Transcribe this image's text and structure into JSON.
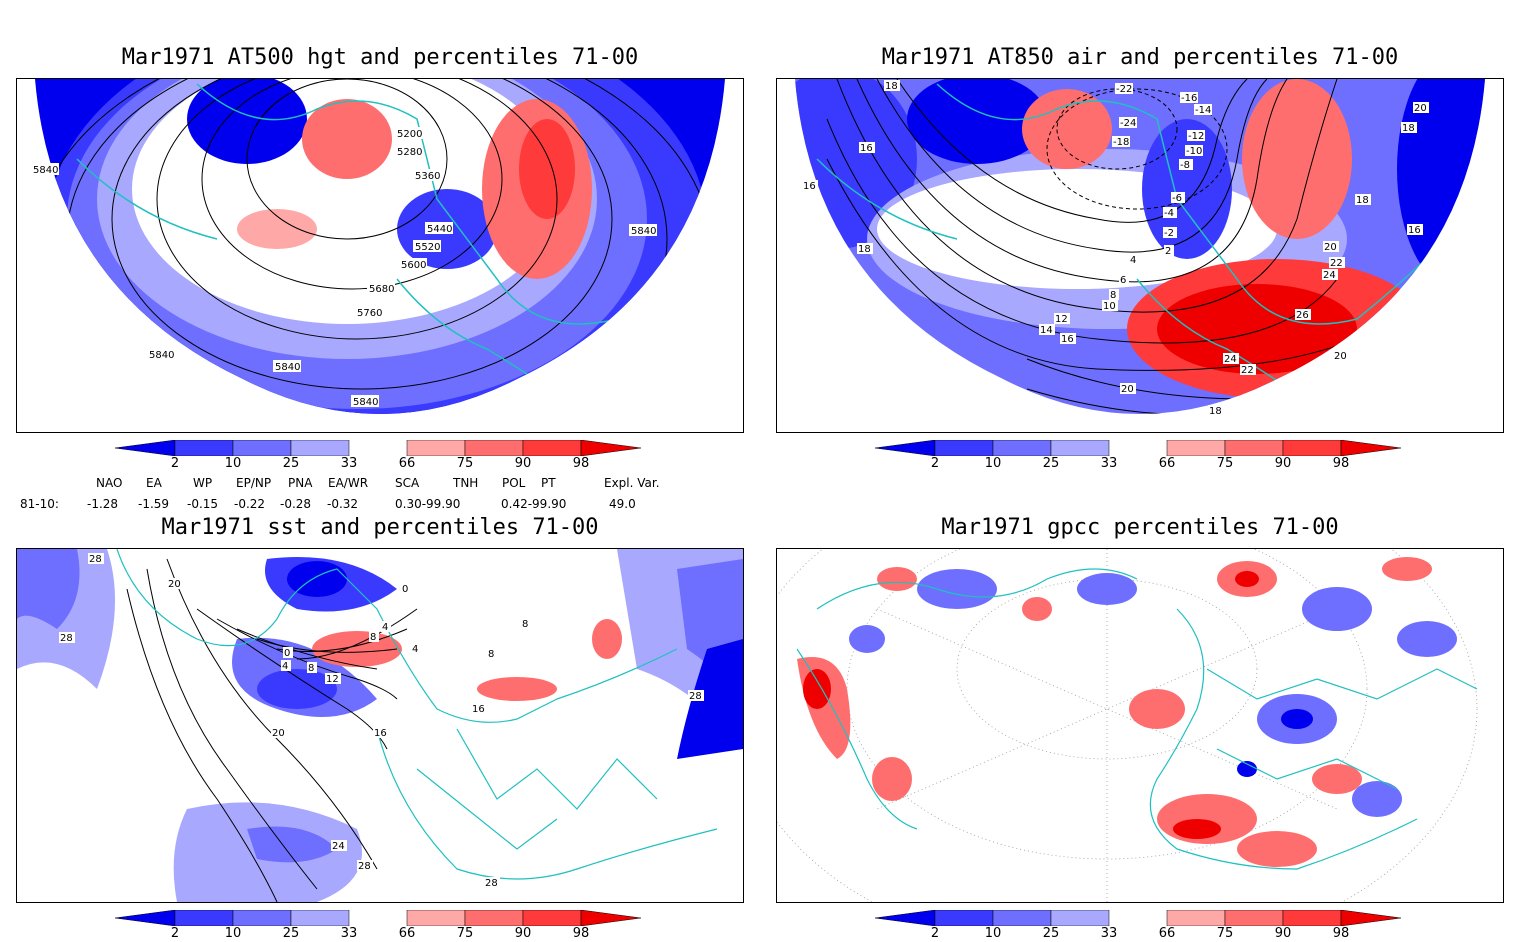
{
  "panels": [
    {
      "title": "Mar1971 AT500 hgt and percentiles 71-00",
      "contour_labels": [
        "5200",
        "5280",
        "5360",
        "5440",
        "5520",
        "5600",
        "5680",
        "5760",
        "5840",
        "5840",
        "5840",
        "5840",
        "5840"
      ]
    },
    {
      "title": "Mar1971 AT850 air and percentiles 71-00",
      "contour_labels": [
        "-22",
        "-16",
        "-14",
        "-24",
        "-18",
        "-12",
        "-10",
        "-8",
        "-6",
        "-4",
        "-2",
        "2",
        "4",
        "6",
        "8",
        "10",
        "12",
        "14",
        "16",
        "16",
        "16",
        "18",
        "18",
        "18",
        "18",
        "20",
        "22",
        "24",
        "26",
        "24",
        "22",
        "20",
        "20",
        "18",
        "16",
        "20"
      ]
    },
    {
      "title": "Mar1971 sst and percentiles 71-00",
      "contour_labels": [
        "28",
        "28",
        "20",
        "0",
        "4",
        "8",
        "12",
        "0",
        "4",
        "8",
        "16",
        "16",
        "20",
        "24",
        "28",
        "28",
        "28",
        "8",
        "8",
        "4"
      ]
    },
    {
      "title": "Mar1971 gpcc percentiles 71-00",
      "contour_labels": []
    }
  ],
  "colorbar": {
    "labels": [
      "2",
      "10",
      "25",
      "33",
      "66",
      "75",
      "90",
      "98"
    ],
    "colors": {
      "p2": "#0000ee",
      "p10": "#3a3aff",
      "p25": "#6e6eff",
      "p33": "#a8a8ff",
      "p66": "#ffa8a8",
      "p75": "#ff6e6e",
      "p90": "#ff3a3a",
      "p98": "#ee0000"
    }
  },
  "indices": {
    "headers": [
      "NAO",
      "EA",
      "WP",
      "EP/NP",
      "PNA",
      "EA/WR",
      "SCA",
      "TNH",
      "POL",
      "PT",
      "Expl. Var."
    ],
    "row_label": "81-10:",
    "values": [
      "-1.28",
      "-1.59",
      "-0.15",
      "-0.22",
      "-0.28",
      "-0.32",
      "0.30-99.90",
      "0.42-99.90",
      "49.0"
    ]
  },
  "map_colors": {
    "coastline": "#20c0c0",
    "contour": "#000000",
    "graticule": "#9a9a9a"
  }
}
